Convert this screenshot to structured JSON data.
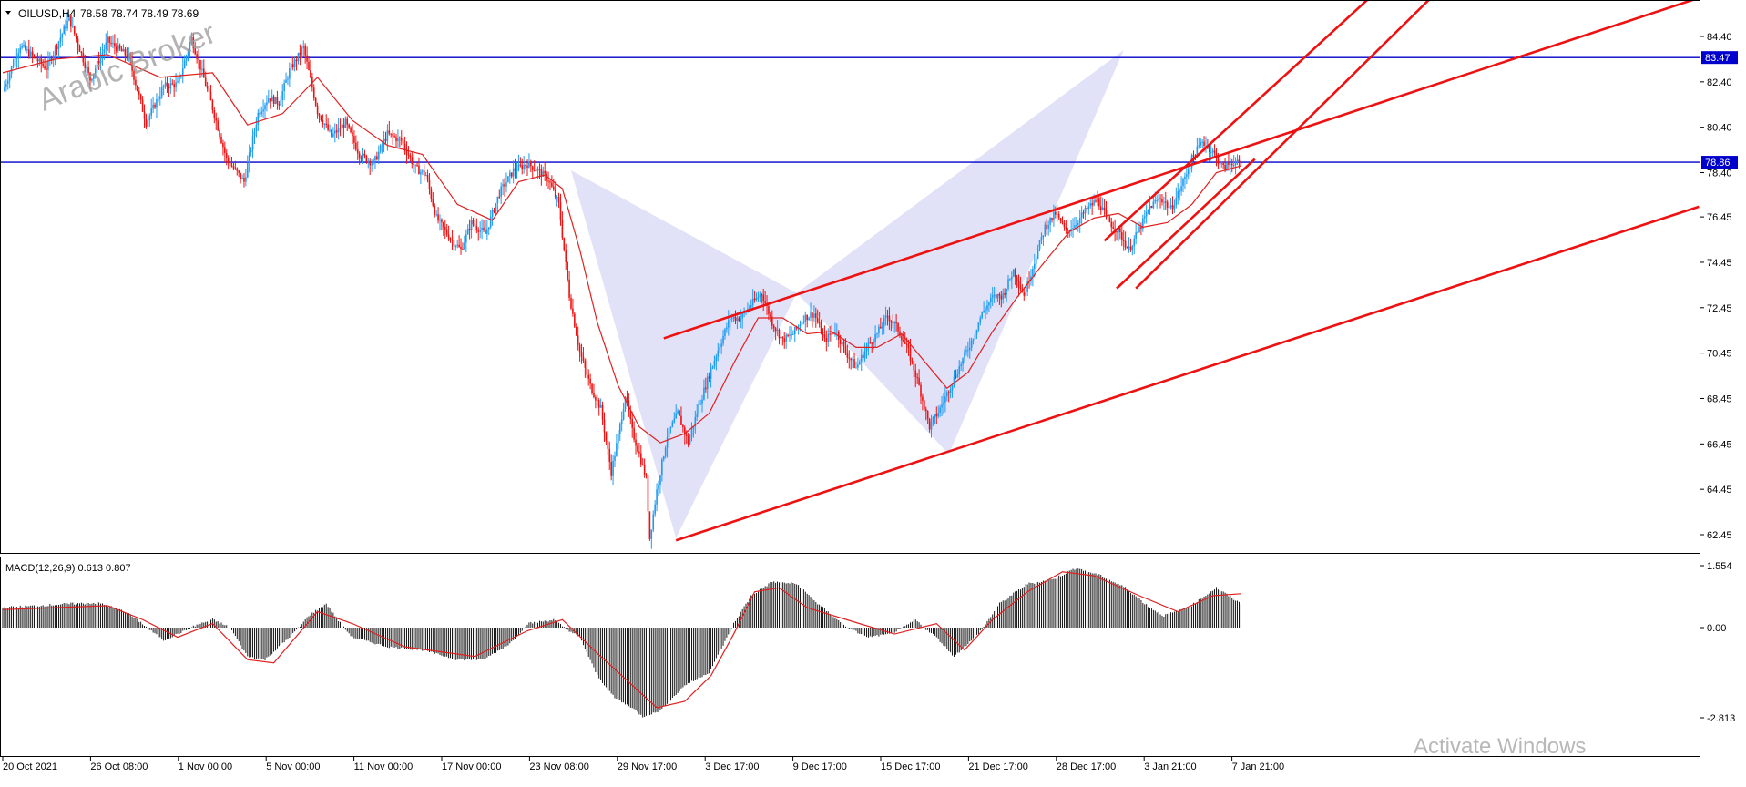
{
  "header": {
    "symbol": "OILUSD,H4",
    "ohlc": "78.58 78.74 78.49 78.69"
  },
  "watermark": "Arabic Broker",
  "os_notice": "Activate Windows",
  "colors": {
    "bull": "#1e9bf0",
    "bear": "#ee1111",
    "ma": "#e02020",
    "hline": "#0000cc",
    "trend": "#ee1111",
    "pattern": "#c8c8f0",
    "macd_hist": "#000000",
    "macd_signal": "#e02020"
  },
  "chart_data": [
    {
      "type": "candlestick",
      "symbol": "OILUSD",
      "timeframe": "H4",
      "ylim": [
        61.5,
        86.0
      ],
      "y_ticks": [
        "84.40",
        "82.40",
        "80.40",
        "78.40",
        "76.45",
        "74.45",
        "72.45",
        "70.45",
        "68.45",
        "66.45",
        "64.45",
        "62.45"
      ],
      "x_ticks": [
        "20 Oct 2021",
        "26 Oct 08:00",
        "1 Nov 00:00",
        "5 Nov 00:00",
        "11 Nov 00:00",
        "17 Nov 00:00",
        "23 Nov 08:00",
        "29 Nov 17:00",
        "3 Dec 17:00",
        "9 Dec 17:00",
        "15 Dec 17:00",
        "21 Dec 17:00",
        "28 Dec 17:00",
        "3 Jan 21:00",
        "7 Jan 21:00"
      ],
      "horizontal_levels": [
        {
          "value": 83.47,
          "label": "83.47"
        },
        {
          "value": 78.86,
          "label": "78.86"
        }
      ],
      "price_path": [
        [
          0,
          82.0
        ],
        [
          10,
          84.0
        ],
        [
          25,
          83.0
        ],
        [
          38,
          85.2
        ],
        [
          50,
          82.5
        ],
        [
          60,
          84.2
        ],
        [
          72,
          83.5
        ],
        [
          82,
          80.6
        ],
        [
          92,
          82.2
        ],
        [
          100,
          82.3
        ],
        [
          108,
          84.3
        ],
        [
          118,
          81.8
        ],
        [
          128,
          79.0
        ],
        [
          138,
          78.0
        ],
        [
          146,
          81.0
        ],
        [
          152,
          81.7
        ],
        [
          158,
          81.5
        ],
        [
          164,
          82.9
        ],
        [
          172,
          83.9
        ],
        [
          180,
          81.1
        ],
        [
          188,
          80.0
        ],
        [
          196,
          80.6
        ],
        [
          204,
          79.2
        ],
        [
          212,
          78.8
        ],
        [
          220,
          80.1
        ],
        [
          228,
          79.8
        ],
        [
          236,
          78.6
        ],
        [
          242,
          78.3
        ],
        [
          248,
          76.4
        ],
        [
          256,
          75.5
        ],
        [
          262,
          75.0
        ],
        [
          268,
          76.2
        ],
        [
          276,
          75.7
        ],
        [
          284,
          77.5
        ],
        [
          292,
          78.5
        ],
        [
          300,
          78.8
        ],
        [
          306,
          78.5
        ],
        [
          312,
          78.1
        ],
        [
          318,
          77.0
        ],
        [
          324,
          73.0
        ],
        [
          330,
          70.5
        ],
        [
          336,
          69.0
        ],
        [
          342,
          68.0
        ],
        [
          348,
          65.2
        ],
        [
          352,
          66.8
        ],
        [
          356,
          68.6
        ],
        [
          360,
          67.0
        ],
        [
          364,
          66.0
        ],
        [
          368,
          64.9
        ],
        [
          370,
          62.3
        ],
        [
          374,
          64.4
        ],
        [
          380,
          66.8
        ],
        [
          386,
          67.8
        ],
        [
          392,
          66.5
        ],
        [
          398,
          68.1
        ],
        [
          404,
          69.5
        ],
        [
          410,
          70.8
        ],
        [
          416,
          72.0
        ],
        [
          422,
          72.0
        ],
        [
          428,
          72.6
        ],
        [
          434,
          73.1
        ],
        [
          440,
          71.8
        ],
        [
          446,
          71.0
        ],
        [
          452,
          71.3
        ],
        [
          458,
          72.0
        ],
        [
          464,
          72.2
        ],
        [
          470,
          71.0
        ],
        [
          476,
          71.5
        ],
        [
          482,
          70.5
        ],
        [
          488,
          69.8
        ],
        [
          494,
          70.7
        ],
        [
          500,
          71.3
        ],
        [
          506,
          72.1
        ],
        [
          512,
          71.5
        ],
        [
          518,
          70.5
        ],
        [
          524,
          69.0
        ],
        [
          530,
          67.2
        ],
        [
          536,
          68.0
        ],
        [
          542,
          69.0
        ],
        [
          548,
          70.0
        ],
        [
          554,
          71.0
        ],
        [
          560,
          72.2
        ],
        [
          566,
          72.9
        ],
        [
          572,
          73.0
        ],
        [
          578,
          74.1
        ],
        [
          584,
          73.0
        ],
        [
          590,
          74.5
        ],
        [
          596,
          76.0
        ],
        [
          602,
          76.6
        ],
        [
          608,
          75.8
        ],
        [
          614,
          76.2
        ],
        [
          620,
          76.8
        ],
        [
          626,
          77.2
        ],
        [
          632,
          76.3
        ],
        [
          638,
          75.8
        ],
        [
          644,
          75.0
        ],
        [
          650,
          75.9
        ],
        [
          656,
          76.9
        ],
        [
          662,
          77.3
        ],
        [
          668,
          76.8
        ],
        [
          674,
          77.8
        ],
        [
          680,
          79.0
        ],
        [
          686,
          79.8
        ],
        [
          692,
          79.3
        ],
        [
          698,
          78.6
        ],
        [
          704,
          78.9
        ],
        [
          708,
          78.69
        ]
      ],
      "ma_path": [
        [
          0,
          82.8
        ],
        [
          30,
          83.4
        ],
        [
          60,
          83.6
        ],
        [
          90,
          82.6
        ],
        [
          120,
          82.8
        ],
        [
          140,
          80.5
        ],
        [
          160,
          81.0
        ],
        [
          180,
          82.6
        ],
        [
          200,
          80.7
        ],
        [
          220,
          79.6
        ],
        [
          240,
          79.2
        ],
        [
          260,
          77.0
        ],
        [
          280,
          76.3
        ],
        [
          295,
          78.0
        ],
        [
          310,
          78.3
        ],
        [
          320,
          77.7
        ],
        [
          330,
          75.0
        ],
        [
          340,
          71.8
        ],
        [
          352,
          69.0
        ],
        [
          364,
          67.2
        ],
        [
          376,
          66.5
        ],
        [
          390,
          66.9
        ],
        [
          404,
          67.8
        ],
        [
          418,
          70.0
        ],
        [
          432,
          72.0
        ],
        [
          446,
          72.0
        ],
        [
          460,
          71.3
        ],
        [
          474,
          71.4
        ],
        [
          488,
          70.7
        ],
        [
          500,
          70.7
        ],
        [
          514,
          71.3
        ],
        [
          528,
          70.0
        ],
        [
          540,
          68.9
        ],
        [
          552,
          69.6
        ],
        [
          566,
          71.4
        ],
        [
          580,
          72.9
        ],
        [
          594,
          74.3
        ],
        [
          610,
          75.8
        ],
        [
          624,
          76.4
        ],
        [
          638,
          76.6
        ],
        [
          652,
          76.0
        ],
        [
          666,
          76.2
        ],
        [
          680,
          77.0
        ],
        [
          694,
          78.4
        ],
        [
          708,
          78.7
        ]
      ],
      "pattern_polygons": [
        [
          [
            325,
            78.5
          ],
          [
            385,
            62.3
          ],
          [
            454,
            73.1
          ]
        ],
        [
          [
            454,
            73.1
          ],
          [
            641,
            83.8
          ],
          [
            541,
            66.0
          ]
        ]
      ],
      "trend_lines": [
        {
          "from": [
            385,
            62.2
          ],
          "to": [
            970,
            76.9
          ]
        },
        {
          "from": [
            378,
            71.1
          ],
          "to": [
            970,
            86.1
          ]
        },
        {
          "from": [
            637,
            73.3
          ],
          "to": [
            716,
            79.0
          ]
        },
        {
          "from": [
            630,
            75.4
          ],
          "to": [
            783,
            86.2
          ]
        },
        {
          "from": [
            648,
            73.3
          ],
          "to": [
            818,
            86.2
          ]
        }
      ]
    },
    {
      "type": "bar",
      "title": "MACD(12,26,9) 0.613 0.807",
      "ylim": [
        -2.9,
        1.65
      ],
      "y_ticks": [
        "1.554",
        "0.00",
        "-2.813"
      ],
      "histogram_path": [
        [
          0,
          0.5
        ],
        [
          20,
          0.55
        ],
        [
          40,
          0.6
        ],
        [
          55,
          0.62
        ],
        [
          70,
          0.4
        ],
        [
          80,
          0.1
        ],
        [
          92,
          -0.4
        ],
        [
          100,
          -0.2
        ],
        [
          110,
          0.05
        ],
        [
          120,
          0.2
        ],
        [
          130,
          0.0
        ],
        [
          140,
          -0.9
        ],
        [
          150,
          -1.0
        ],
        [
          160,
          -0.5
        ],
        [
          175,
          0.3
        ],
        [
          185,
          0.6
        ],
        [
          200,
          -0.3
        ],
        [
          220,
          -0.6
        ],
        [
          240,
          -0.7
        ],
        [
          260,
          -1.0
        ],
        [
          275,
          -1.0
        ],
        [
          290,
          -0.5
        ],
        [
          300,
          0.1
        ],
        [
          315,
          0.2
        ],
        [
          330,
          -0.3
        ],
        [
          340,
          -1.5
        ],
        [
          350,
          -2.2
        ],
        [
          360,
          -2.5
        ],
        [
          366,
          -2.78
        ],
        [
          376,
          -2.6
        ],
        [
          390,
          -1.8
        ],
        [
          404,
          -1.4
        ],
        [
          418,
          0.1
        ],
        [
          428,
          0.8
        ],
        [
          440,
          1.15
        ],
        [
          454,
          1.1
        ],
        [
          466,
          0.6
        ],
        [
          480,
          0.1
        ],
        [
          494,
          -0.3
        ],
        [
          508,
          -0.2
        ],
        [
          522,
          0.2
        ],
        [
          534,
          -0.3
        ],
        [
          544,
          -0.9
        ],
        [
          556,
          -0.3
        ],
        [
          570,
          0.6
        ],
        [
          586,
          1.1
        ],
        [
          600,
          1.2
        ],
        [
          614,
          1.5
        ],
        [
          628,
          1.3
        ],
        [
          642,
          1.0
        ],
        [
          656,
          0.5
        ],
        [
          664,
          0.3
        ],
        [
          678,
          0.5
        ],
        [
          694,
          1.0
        ],
        [
          708,
          0.6
        ]
      ],
      "signal_path": [
        [
          0,
          0.45
        ],
        [
          30,
          0.5
        ],
        [
          60,
          0.55
        ],
        [
          80,
          0.2
        ],
        [
          100,
          -0.3
        ],
        [
          120,
          0.1
        ],
        [
          140,
          -1.0
        ],
        [
          155,
          -1.1
        ],
        [
          180,
          0.4
        ],
        [
          200,
          0.1
        ],
        [
          230,
          -0.6
        ],
        [
          270,
          -0.9
        ],
        [
          300,
          -0.1
        ],
        [
          320,
          0.2
        ],
        [
          340,
          -0.8
        ],
        [
          360,
          -1.8
        ],
        [
          374,
          -2.5
        ],
        [
          390,
          -2.3
        ],
        [
          405,
          -1.5
        ],
        [
          418,
          -0.2
        ],
        [
          430,
          0.9
        ],
        [
          444,
          1.0
        ],
        [
          460,
          0.5
        ],
        [
          490,
          0.1
        ],
        [
          510,
          -0.2
        ],
        [
          534,
          0.1
        ],
        [
          550,
          -0.7
        ],
        [
          566,
          0.2
        ],
        [
          586,
          0.9
        ],
        [
          606,
          1.4
        ],
        [
          624,
          1.3
        ],
        [
          650,
          0.8
        ],
        [
          672,
          0.4
        ],
        [
          692,
          0.8
        ],
        [
          708,
          0.85
        ]
      ]
    }
  ]
}
